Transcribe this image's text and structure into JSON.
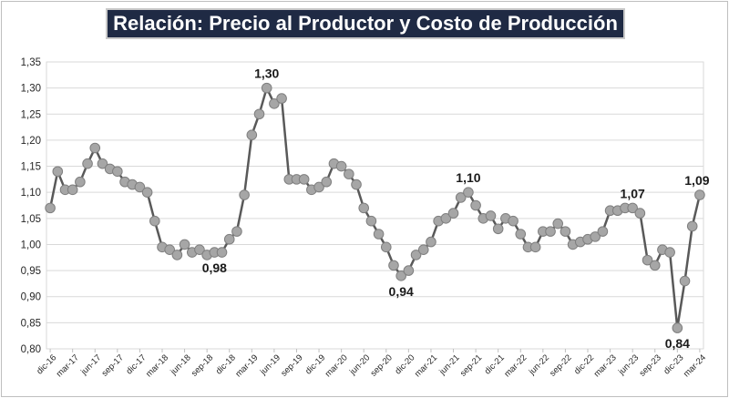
{
  "chart_data": {
    "type": "line",
    "title": "Relación: Precio al Productor y Costo de Producción",
    "ylim": [
      0.8,
      1.35
    ],
    "y_ticks": [
      "0,80",
      "0,85",
      "0,90",
      "0,95",
      "1,00",
      "1,05",
      "1,10",
      "1,15",
      "1,20",
      "1,25",
      "1,30",
      "1,35"
    ],
    "x_labels": [
      "dic-16",
      "mar-17",
      "jun-17",
      "sep-17",
      "dic-17",
      "mar-18",
      "jun-18",
      "sep-18",
      "dic-18",
      "mar-19",
      "jun-19",
      "sep-19",
      "dic-19",
      "mar-20",
      "jun-20",
      "sep-20",
      "dic-20",
      "mar-21",
      "jun-21",
      "sep-21",
      "dic-21",
      "mar-22",
      "jun-22",
      "sep-22",
      "dic-22",
      "mar-23",
      "jun-23",
      "sep-23",
      "dic-23",
      "mar-24"
    ],
    "grid": true,
    "line_color": "#595959",
    "marker_color": "#a6a6a6",
    "series": [
      {
        "values": [
          1.07,
          1.14,
          1.105,
          1.105,
          1.12,
          1.155,
          1.185,
          1.155,
          1.145,
          1.14,
          1.12,
          1.115,
          1.11,
          1.1,
          1.045,
          0.995,
          0.99,
          0.98,
          1.0,
          0.985,
          0.99,
          0.98,
          0.985,
          0.985,
          1.01,
          1.025,
          1.095,
          1.21,
          1.25,
          1.3,
          1.27,
          1.28,
          1.125,
          1.125,
          1.125,
          1.105,
          1.11,
          1.12,
          1.155,
          1.15,
          1.135,
          1.115,
          1.07,
          1.045,
          1.02,
          0.995,
          0.96,
          0.94,
          0.95,
          0.98,
          0.99,
          1.005,
          1.045,
          1.05,
          1.06,
          1.09,
          1.1,
          1.075,
          1.05,
          1.055,
          1.03,
          1.05,
          1.045,
          1.02,
          0.995,
          0.995,
          1.025,
          1.025,
          1.04,
          1.025,
          1.0,
          1.005,
          1.01,
          1.015,
          1.025,
          1.065,
          1.065,
          1.07,
          1.07,
          1.06,
          0.97,
          0.96,
          0.99,
          0.985,
          0.84,
          0.93,
          1.035,
          1.095
        ]
      }
    ],
    "annotations": [
      {
        "index": 22,
        "text": "0,98",
        "position": "below"
      },
      {
        "index": 29,
        "text": "1,30",
        "position": "above"
      },
      {
        "index": 47,
        "text": "0,94",
        "position": "below"
      },
      {
        "index": 56,
        "text": "1,10",
        "position": "above"
      },
      {
        "index": 78,
        "text": "1,07",
        "position": "above"
      },
      {
        "index": 84,
        "text": "0,84",
        "position": "below"
      },
      {
        "index": 87,
        "text": "1,09",
        "position": "above"
      }
    ]
  }
}
